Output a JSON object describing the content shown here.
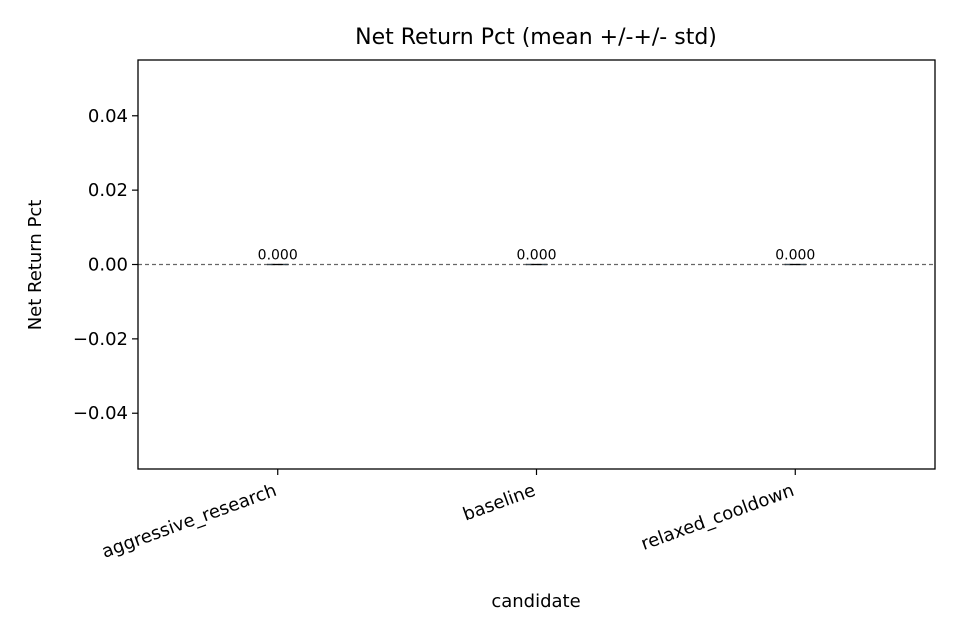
{
  "chart_data": {
    "type": "bar",
    "title": "Net Return Pct (mean +/-+/- std)",
    "xlabel": "candidate",
    "ylabel": "Net Return Pct",
    "categories": [
      "aggressive_research",
      "baseline",
      "relaxed_cooldown"
    ],
    "values": [
      0.0,
      0.0,
      0.0
    ],
    "std": [
      0.0,
      0.0,
      0.0
    ],
    "data_labels": [
      "0.000",
      "0.000",
      "0.000"
    ],
    "ylim": [
      -0.055,
      0.055
    ],
    "yticks": [
      -0.04,
      -0.02,
      0.0,
      0.02,
      0.04
    ],
    "ytick_labels": [
      "−0.04",
      "−0.02",
      "0.00",
      "0.02",
      "0.04"
    ],
    "reference_line": {
      "y": 0.0,
      "style": "dashed",
      "color": "#666666"
    },
    "bar_color": "#1f77b4",
    "grid": false,
    "legend": "none"
  }
}
